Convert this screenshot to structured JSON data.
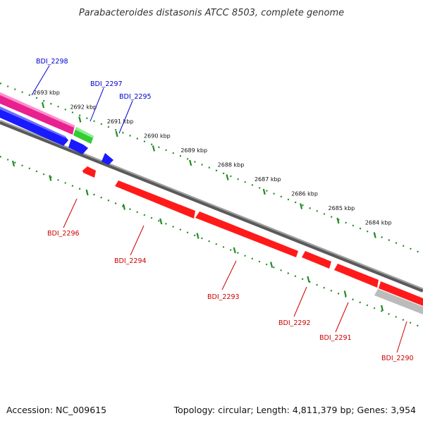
{
  "title": "Parabacteroides distasonis ATCC 8503, complete genome",
  "footer": {
    "accession": "Accession: NC_009615",
    "summary": "Topology: circular; Length: 4,811,379 bp; Genes: 3,954"
  },
  "colors": {
    "forward_label": "#0000cc",
    "reverse_label": "#cc0000",
    "ruler_dots": "#228b22",
    "backbone": "#777777"
  },
  "ruler_ticks": [
    {
      "label": "2693 kbp"
    },
    {
      "label": "2692 kbp"
    },
    {
      "label": "2691 kbp"
    },
    {
      "label": "2690 kbp"
    },
    {
      "label": "2689 kbp"
    },
    {
      "label": "2688 kbp"
    },
    {
      "label": "2687 kbp"
    },
    {
      "label": "2686 kbp"
    },
    {
      "label": "2685 kbp"
    },
    {
      "label": "2684 kbp"
    }
  ],
  "genes_forward": [
    {
      "label": "BDI_2298",
      "color": "#e8218f"
    },
    {
      "label": "BDI_2297",
      "color": "#33cc33"
    },
    {
      "label": "BDI_2295",
      "color": "#1a1aff"
    }
  ],
  "genes_reverse": [
    {
      "label": "BDI_2296",
      "color": "#ff1a1a"
    },
    {
      "label": "BDI_2294",
      "color": "#ff1a1a"
    },
    {
      "label": "BDI_2293",
      "color": "#ff1a1a"
    },
    {
      "label": "BDI_2292",
      "color": "#ff1a1a"
    },
    {
      "label": "BDI_2291",
      "color": "#ff1a1a"
    },
    {
      "label": "BDI_2290",
      "color": "#ff1a1a"
    }
  ]
}
